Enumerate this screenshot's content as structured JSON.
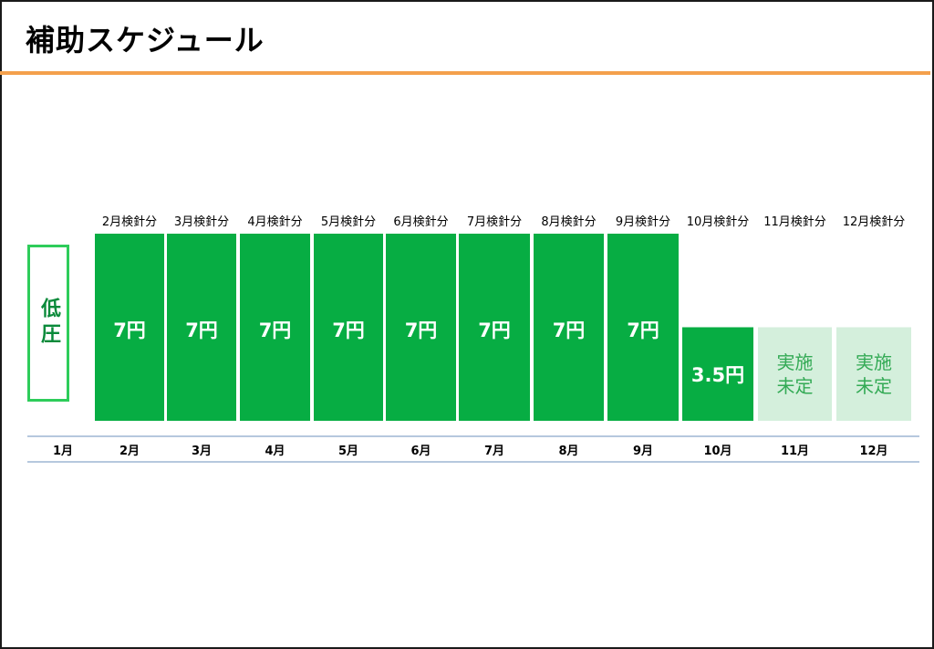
{
  "title": "補助スケジュール",
  "voltage_label": "低圧",
  "colors": {
    "accent_rule": "#f4a04c",
    "bar_green": "#07ad43",
    "bar_pending": "#d4efdc",
    "pending_text": "#33aa55",
    "axis_line": "#9db5d4",
    "voltage_border": "#2ecc5a"
  },
  "chart_data": {
    "type": "bar",
    "title": "補助スケジュール",
    "categories": [
      "1月",
      "2月",
      "3月",
      "4月",
      "5月",
      "6月",
      "7月",
      "8月",
      "9月",
      "10月",
      "11月",
      "12月"
    ],
    "bar_headers": [
      null,
      "2月検針分",
      "3月検針分",
      "4月検針分",
      "5月検針分",
      "6月検針分",
      "7月検針分",
      "8月検針分",
      "9月検針分",
      "10月検針分",
      "11月検針分",
      "12月検針分"
    ],
    "values": [
      null,
      7,
      7,
      7,
      7,
      7,
      7,
      7,
      7,
      3.5,
      3.5,
      3.5
    ],
    "value_labels": [
      null,
      "7円",
      "7円",
      "7円",
      "7円",
      "7円",
      "7円",
      "7円",
      "7円",
      "3.5円",
      "実施\n未定",
      "実施\n未定"
    ],
    "status": [
      "none",
      "confirmed",
      "confirmed",
      "confirmed",
      "confirmed",
      "confirmed",
      "confirmed",
      "confirmed",
      "confirmed",
      "confirmed",
      "pending",
      "pending"
    ],
    "ylim": [
      0,
      7
    ],
    "grid": false,
    "xlabel": "",
    "ylabel": ""
  }
}
